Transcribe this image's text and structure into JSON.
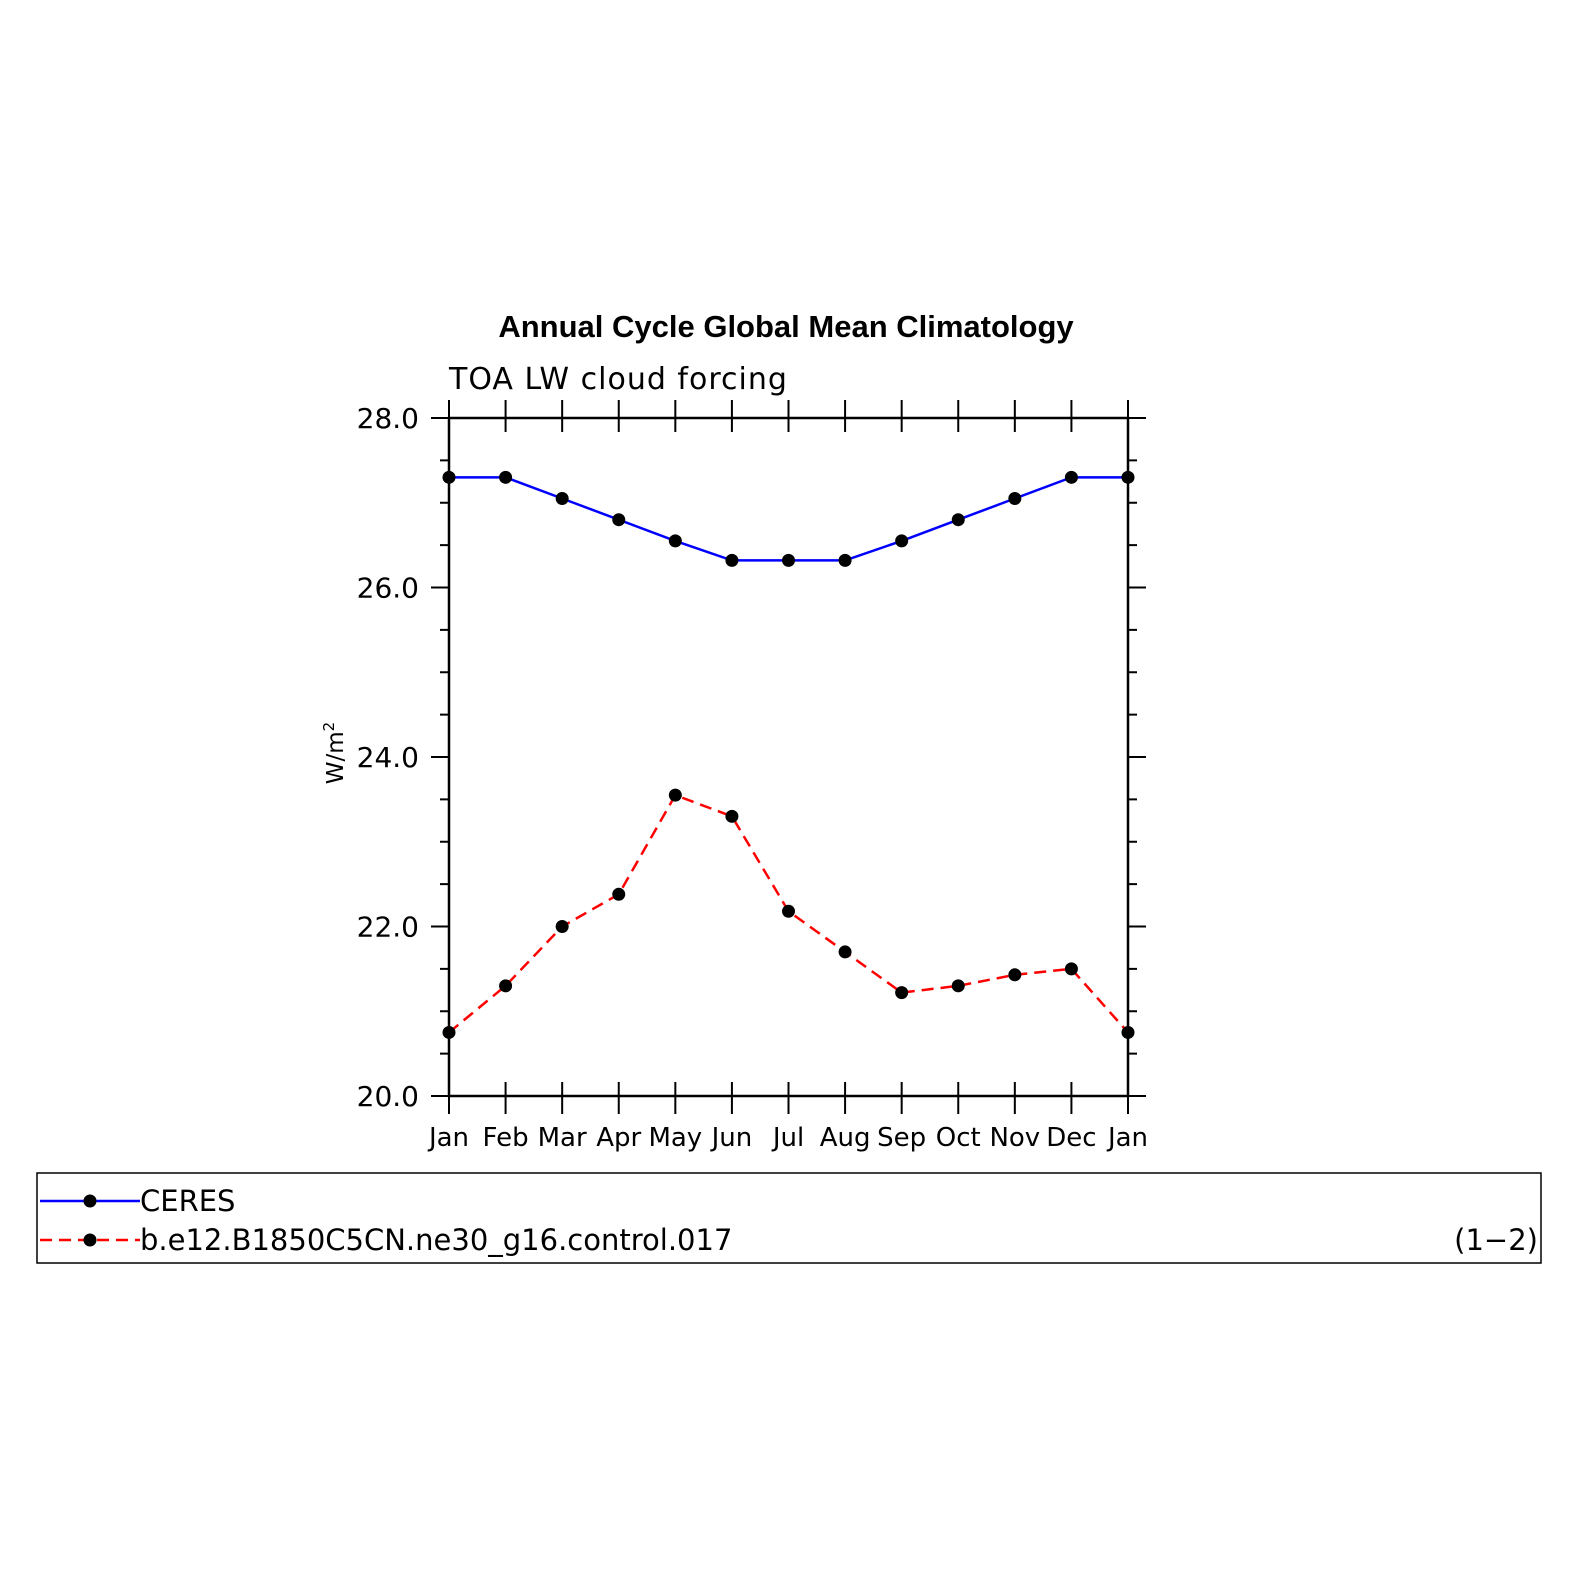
{
  "chart_data": {
    "type": "line",
    "title": "Annual Cycle Global Mean Climatology",
    "subtitle": "TOA LW cloud forcing",
    "xlabel": "",
    "ylabel": "W/m",
    "ylabel_sup": "2",
    "categories": [
      "Jan",
      "Feb",
      "Mar",
      "Apr",
      "May",
      "Jun",
      "Jul",
      "Aug",
      "Sep",
      "Oct",
      "Nov",
      "Dec",
      "Jan"
    ],
    "ylim": [
      20.0,
      28.0
    ],
    "yticks": [
      "20.0",
      "22.0",
      "24.0",
      "26.0",
      "28.0"
    ],
    "series": [
      {
        "name": "CERES",
        "color": "#0000ff",
        "dash": "solid",
        "values": [
          27.3,
          27.3,
          27.05,
          26.8,
          26.55,
          26.32,
          26.32,
          26.32,
          26.55,
          26.8,
          27.05,
          27.3,
          27.3
        ]
      },
      {
        "name": "b.e12.B1850C5CN.ne30_g16.control.017",
        "color": "#ff0000",
        "dash": "dashed",
        "values": [
          20.75,
          21.3,
          22.0,
          22.38,
          23.55,
          23.3,
          22.18,
          21.7,
          21.22,
          21.3,
          21.43,
          21.5,
          20.75
        ]
      }
    ],
    "legend_range_label": "(1−2)",
    "legend_position": "bottom"
  }
}
